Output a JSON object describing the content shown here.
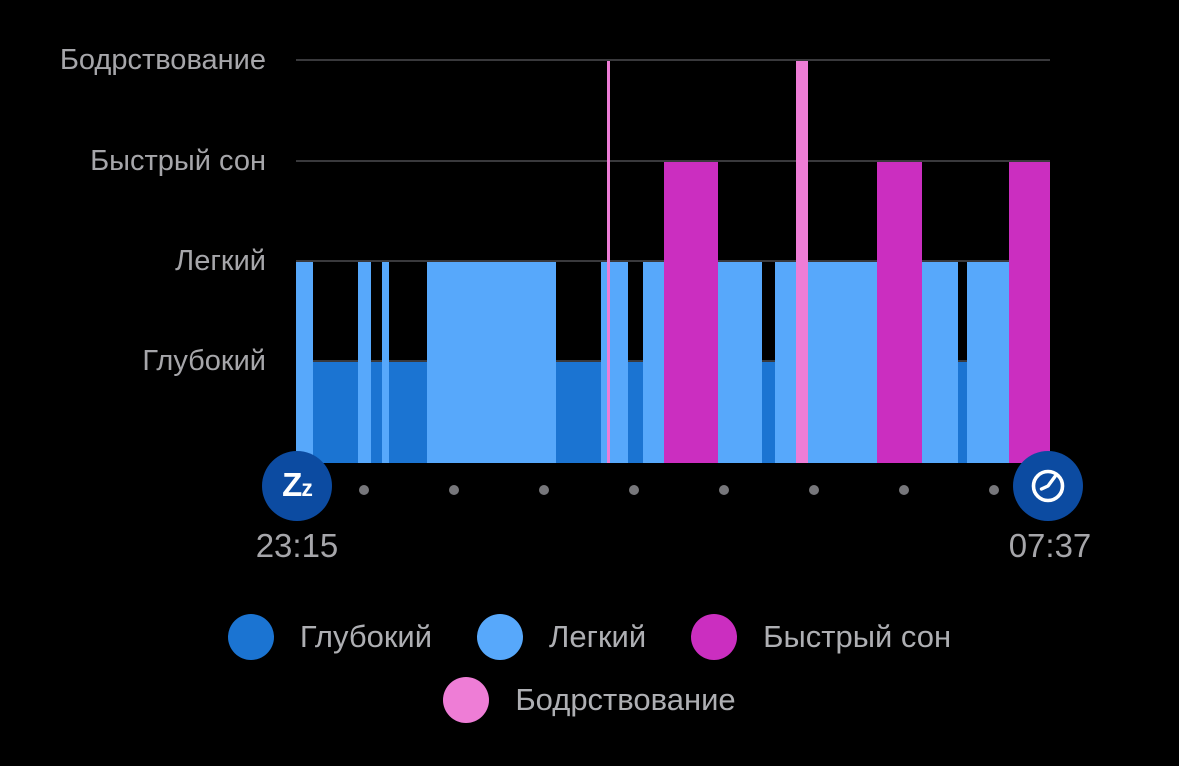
{
  "chart_data": {
    "type": "hypnogram-timeline",
    "description": "Sleep stages over one night (Garmin-style sleep chart)",
    "time_start": "23:15",
    "time_end": "07:37",
    "total_minutes": 502,
    "grid": true,
    "legend_position": "bottom",
    "stages": [
      {
        "id": "awake",
        "label": "Бодрствование",
        "color": "#ee7dd6"
      },
      {
        "id": "rem",
        "label": "Быстрый сон",
        "color": "#cb2ec0"
      },
      {
        "id": "light",
        "label": "Легкий",
        "color": "#57a8fb"
      },
      {
        "id": "deep",
        "label": "Глубокий",
        "color": "#1b74d2"
      }
    ],
    "segments": [
      {
        "stage": "light",
        "start": "23:15",
        "end": "23:26"
      },
      {
        "stage": "deep",
        "start": "23:26",
        "end": "23:56"
      },
      {
        "stage": "light",
        "start": "23:56",
        "end": "00:05"
      },
      {
        "stage": "deep",
        "start": "00:05",
        "end": "00:12"
      },
      {
        "stage": "light",
        "start": "00:12",
        "end": "00:17"
      },
      {
        "stage": "deep",
        "start": "00:17",
        "end": "00:42"
      },
      {
        "stage": "light",
        "start": "00:42",
        "end": "02:08"
      },
      {
        "stage": "deep",
        "start": "02:08",
        "end": "02:38"
      },
      {
        "stage": "light",
        "start": "02:38",
        "end": "02:42"
      },
      {
        "stage": "awake",
        "start": "02:42",
        "end": "02:44"
      },
      {
        "stage": "light",
        "start": "02:44",
        "end": "02:56"
      },
      {
        "stage": "deep",
        "start": "02:56",
        "end": "03:06"
      },
      {
        "stage": "light",
        "start": "03:06",
        "end": "03:20"
      },
      {
        "stage": "rem",
        "start": "03:20",
        "end": "03:56"
      },
      {
        "stage": "light",
        "start": "03:56",
        "end": "04:25"
      },
      {
        "stage": "deep",
        "start": "04:25",
        "end": "04:34"
      },
      {
        "stage": "light",
        "start": "04:34",
        "end": "04:48"
      },
      {
        "stage": "awake",
        "start": "04:48",
        "end": "04:56"
      },
      {
        "stage": "light",
        "start": "04:56",
        "end": "05:42"
      },
      {
        "stage": "rem",
        "start": "05:42",
        "end": "06:12"
      },
      {
        "stage": "light",
        "start": "06:12",
        "end": "06:36"
      },
      {
        "stage": "deep",
        "start": "06:36",
        "end": "06:42"
      },
      {
        "stage": "light",
        "start": "06:42",
        "end": "07:10"
      },
      {
        "stage": "rem",
        "start": "07:10",
        "end": "07:37"
      }
    ],
    "axis": {
      "start_label": "23:15",
      "end_label": "07:37",
      "dots_count": 8
    }
  },
  "icons": {
    "sleep_start_label": "Zz",
    "wake_icon": "clock-icon"
  },
  "legend": {
    "rows": [
      [
        {
          "stage": "deep",
          "label": "Глубокий"
        },
        {
          "stage": "light",
          "label": "Легкий"
        },
        {
          "stage": "rem",
          "label": "Быстрый сон"
        }
      ],
      [
        {
          "stage": "awake",
          "label": "Бодрствование"
        }
      ]
    ]
  },
  "colors": {
    "background": "#000000",
    "gridline": "#39393c",
    "axis_text": "#a6a6aa",
    "legend_text": "#aeafb3",
    "axis_dot": "#77777b",
    "icon_circle": "#0c4ba1"
  }
}
